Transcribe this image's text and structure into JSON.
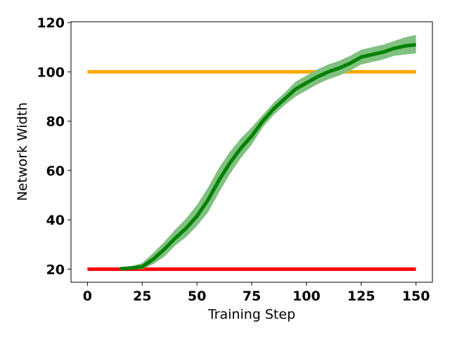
{
  "chart_data": {
    "type": "line",
    "title": "",
    "xlabel": "Training Step",
    "ylabel": "Network Width",
    "xlim": [
      -7.5,
      157.5
    ],
    "ylim": [
      14.7,
      120.3
    ],
    "x_ticks": [
      0,
      25,
      50,
      75,
      100,
      125,
      150
    ],
    "y_ticks": [
      20,
      40,
      60,
      80,
      100,
      120
    ],
    "grid": false,
    "legend": "none",
    "series": [
      {
        "color": "#ff0000",
        "x": [
          0,
          150
        ],
        "y": [
          20,
          20
        ]
      },
      {
        "color": "#ffa500",
        "x": [
          0,
          150
        ],
        "y": [
          100,
          100
        ]
      },
      {
        "color": "#008000",
        "band_color": "#80c080",
        "x": [
          15,
          20,
          25,
          30,
          35,
          40,
          45,
          50,
          55,
          60,
          65,
          70,
          75,
          80,
          85,
          90,
          95,
          100,
          105,
          110,
          115,
          120,
          125,
          130,
          135,
          140,
          145,
          150
        ],
        "y": [
          20.2,
          20.5,
          21,
          24,
          28,
          32.5,
          36.5,
          41.5,
          48,
          56,
          63,
          69,
          74,
          80,
          85,
          89,
          93,
          95.5,
          98,
          100,
          101.5,
          103.5,
          106,
          107,
          108,
          109.5,
          110.5,
          111
        ],
        "lower": [
          19.9,
          19.9,
          20,
          22,
          25,
          29.5,
          33,
          37.5,
          43,
          51,
          58.5,
          65,
          70.5,
          77.5,
          82.5,
          86.5,
          90,
          92.5,
          95,
          97,
          98.5,
          100.5,
          103,
          104,
          105,
          106.5,
          107,
          107.5
        ],
        "upper": [
          20.8,
          21.2,
          22.5,
          26.5,
          31,
          36,
          40.5,
          46,
          53,
          61,
          67.5,
          73,
          77.5,
          82.5,
          87.5,
          91.5,
          96,
          98.5,
          101,
          103,
          104.5,
          106.5,
          109,
          110,
          111,
          112.5,
          114,
          115
        ]
      }
    ]
  }
}
